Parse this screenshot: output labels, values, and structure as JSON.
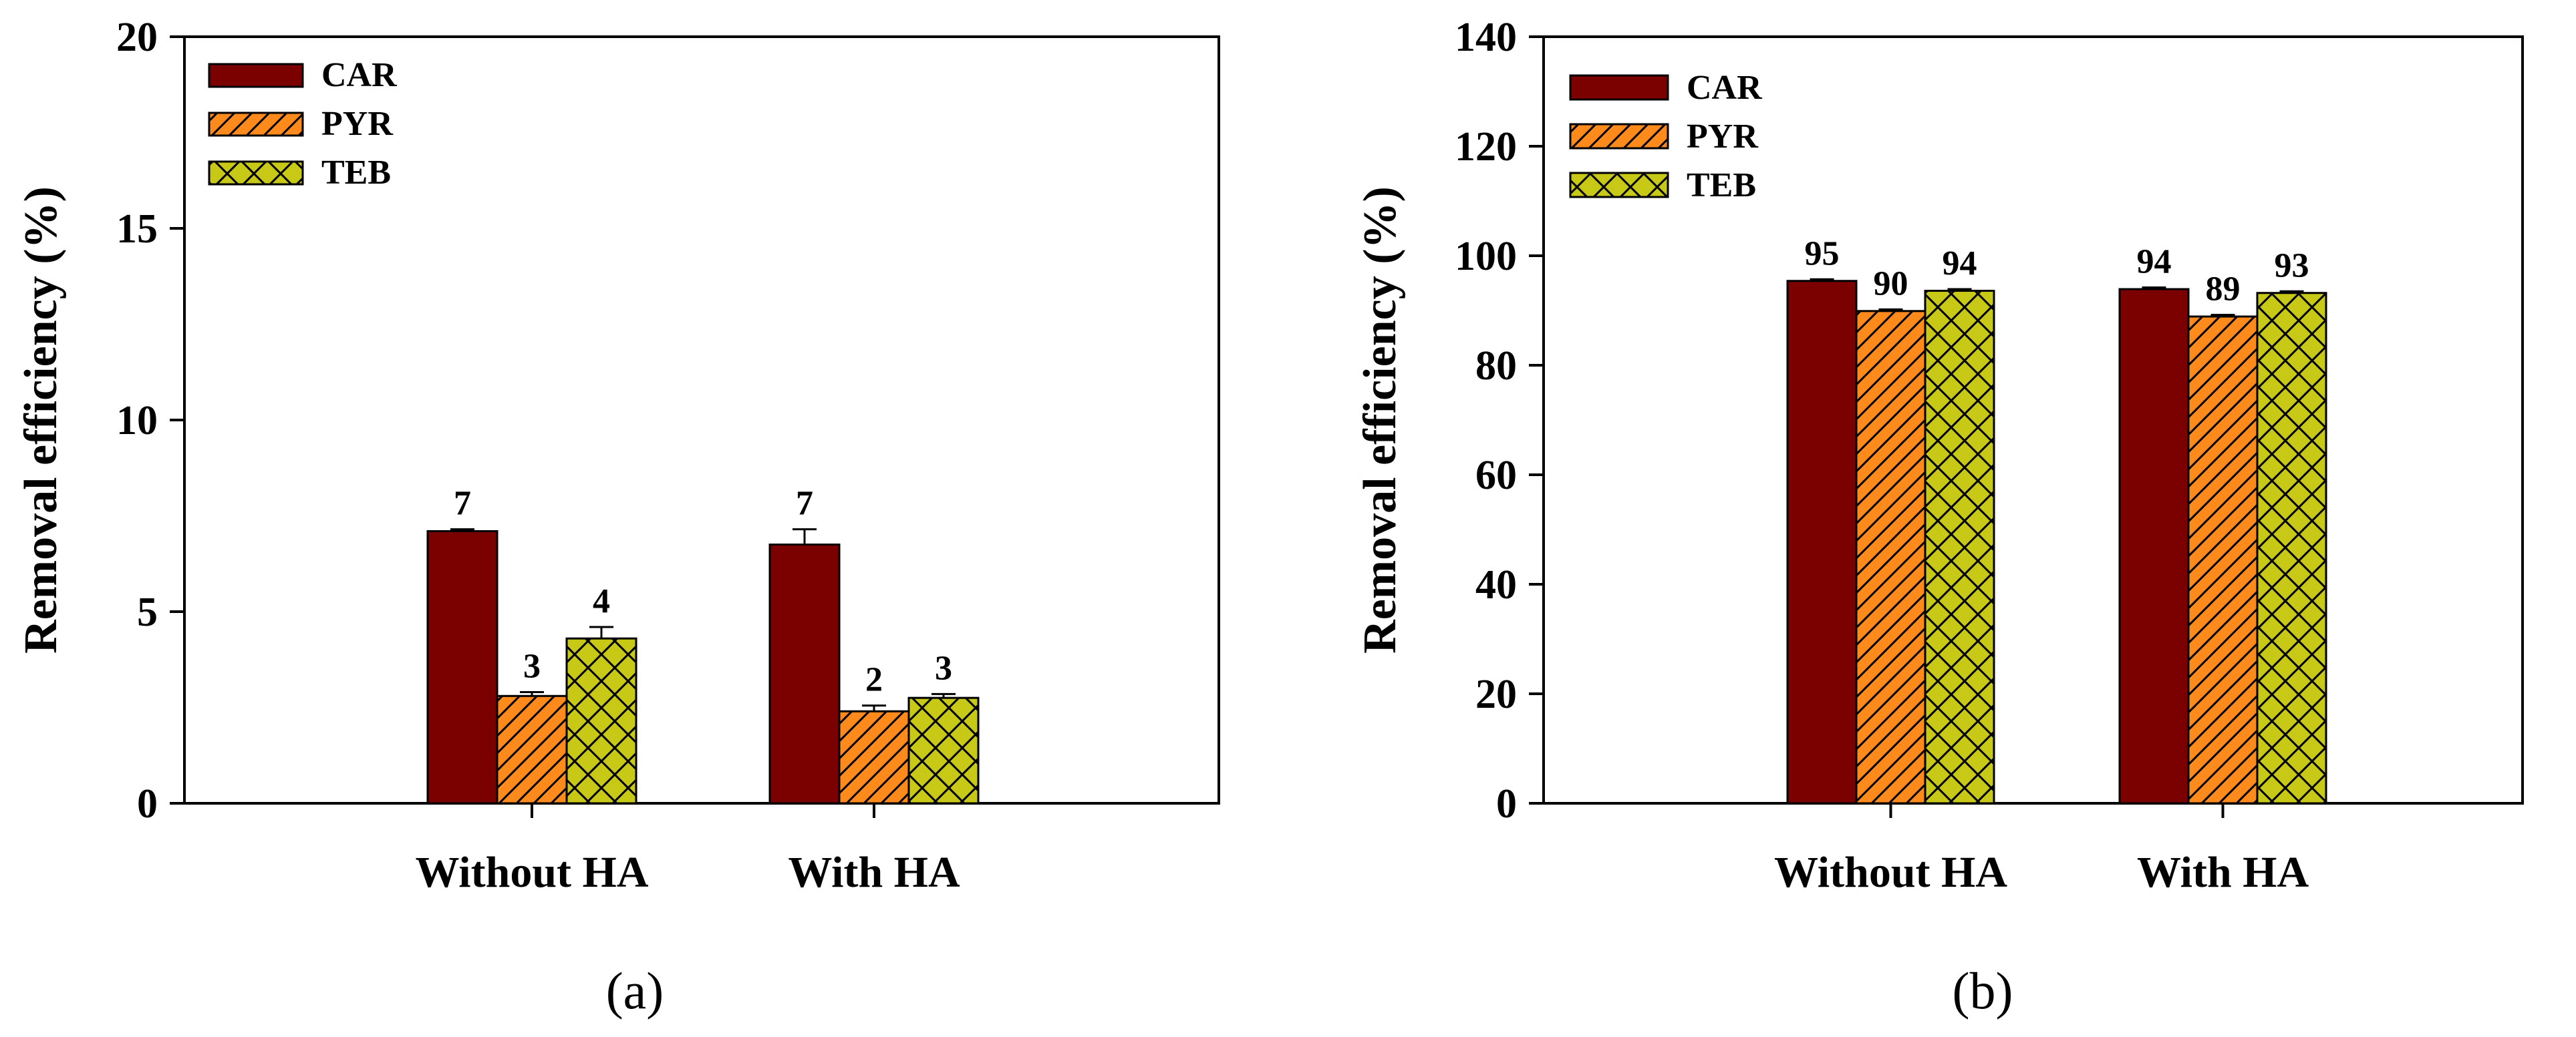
{
  "colors": {
    "CAR": "#7b0000",
    "PYR": "#ff8a1c",
    "TEB": "#c8c816",
    "axis": "#000000"
  },
  "chart_data": [
    {
      "type": "bar",
      "panel_label": "(a)",
      "title": "",
      "xlabel": "",
      "ylabel": "Removal efficiency (%)",
      "ylim": [
        0,
        20
      ],
      "yticks": [
        0,
        5,
        10,
        15,
        20
      ],
      "categories": [
        "Without HA",
        "With HA"
      ],
      "legend_position": "top-left",
      "series": [
        {
          "name": "CAR",
          "values": [
            7.1,
            6.75
          ],
          "errors": [
            0.05,
            0.4
          ],
          "labels": [
            "7",
            "7"
          ],
          "pattern": "solid"
        },
        {
          "name": "PYR",
          "values": [
            2.8,
            2.4
          ],
          "errors": [
            0.1,
            0.15
          ],
          "labels": [
            "3",
            "2"
          ],
          "pattern": "diagonal"
        },
        {
          "name": "TEB",
          "values": [
            4.3,
            2.75
          ],
          "errors": [
            0.3,
            0.1
          ],
          "labels": [
            "4",
            "3"
          ],
          "pattern": "crosshatch"
        }
      ]
    },
    {
      "type": "bar",
      "panel_label": "(b)",
      "title": "",
      "xlabel": "",
      "ylabel": "Removal efficiency (%)",
      "ylim": [
        0,
        140
      ],
      "yticks": [
        0,
        20,
        40,
        60,
        80,
        100,
        120,
        140
      ],
      "categories": [
        "Without HA",
        "With HA"
      ],
      "legend_position": "top-left",
      "series": [
        {
          "name": "CAR",
          "values": [
            95.4,
            93.9
          ],
          "errors": [
            0.3,
            0.3
          ],
          "labels": [
            "95",
            "94"
          ],
          "pattern": "solid"
        },
        {
          "name": "PYR",
          "values": [
            89.9,
            88.9
          ],
          "errors": [
            0.3,
            0.3
          ],
          "labels": [
            "90",
            "89"
          ],
          "pattern": "diagonal"
        },
        {
          "name": "TEB",
          "values": [
            93.6,
            93.2
          ],
          "errors": [
            0.3,
            0.3
          ],
          "labels": [
            "94",
            "93"
          ],
          "pattern": "crosshatch"
        }
      ]
    }
  ]
}
